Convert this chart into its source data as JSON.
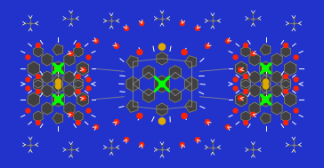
{
  "background_color": "#2233cc",
  "figsize": [
    3.64,
    1.89
  ],
  "dpi": 100,
  "atom_colors": {
    "Ni": "#00ff00",
    "O": "#ff2200",
    "N": "#000033",
    "C": "#707070",
    "H": "#ffffff",
    "S": "#ddaa00",
    "bond": "#888888",
    "dark_c": "#404040"
  },
  "xlim": [
    -3.2,
    3.2
  ],
  "ylim": [
    -1.6,
    1.6
  ]
}
